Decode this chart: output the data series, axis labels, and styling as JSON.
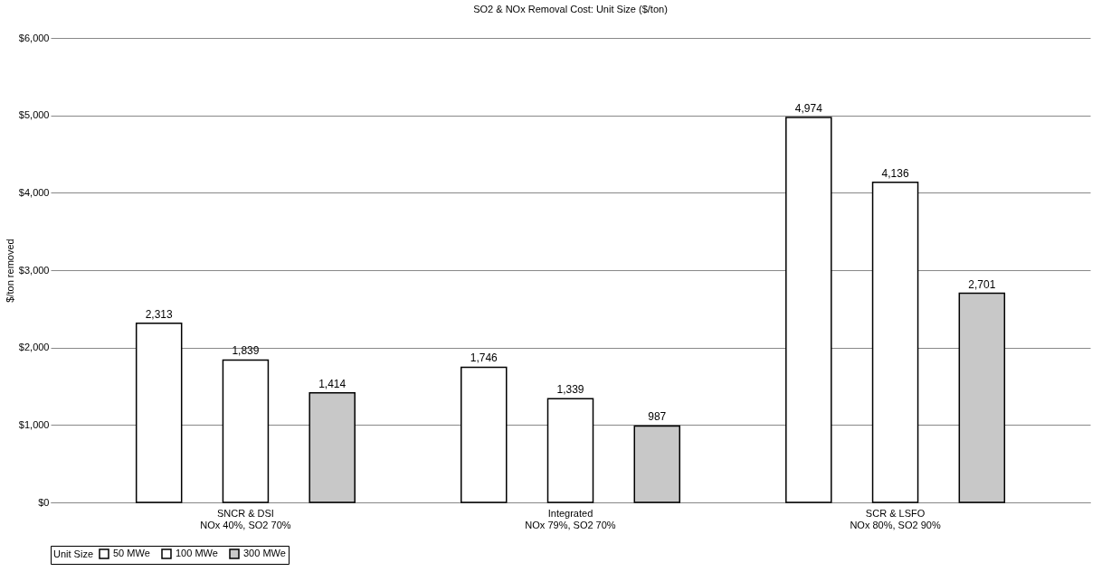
{
  "chart_data": {
    "type": "bar",
    "title": "SO2 & NOx Removal Cost: Unit Size ($/ton)",
    "ylabel": "$/ton removed",
    "legend_title": "Unit Size",
    "categories": [
      "SNCR & DSI\nNOx 40%, SO2 70%",
      "Integrated\nNOx 79%, SO2 70%",
      "SCR & LSFO\nNOx 80%, SO2 90%"
    ],
    "series": [
      {
        "name": "50 MWe",
        "color": "#ffffff",
        "values": [
          2313,
          1746,
          4974
        ],
        "value_labels": [
          "2,313",
          "1,746",
          "4,974"
        ]
      },
      {
        "name": "100 MWe",
        "color": "#ffffff",
        "values": [
          1839,
          1339,
          4136
        ],
        "value_labels": [
          "1,839",
          "1,339",
          "4,136"
        ]
      },
      {
        "name": "300 MWe",
        "color": "#c8c8c8",
        "values": [
          1414,
          987,
          2701
        ],
        "value_labels": [
          "1,414",
          "987",
          "2,701"
        ]
      }
    ],
    "ylim": [
      0,
      6000
    ],
    "yticks": [
      {
        "value": 0,
        "label": "$0"
      },
      {
        "value": 1000,
        "label": "$1,000"
      },
      {
        "value": 2000,
        "label": "$2,000"
      },
      {
        "value": 3000,
        "label": "$3,000"
      },
      {
        "value": 4000,
        "label": "$4,000"
      },
      {
        "value": 5000,
        "label": "$5,000"
      },
      {
        "value": 6000,
        "label": "$6,000"
      }
    ],
    "grid": "y",
    "legend": "bottom"
  }
}
